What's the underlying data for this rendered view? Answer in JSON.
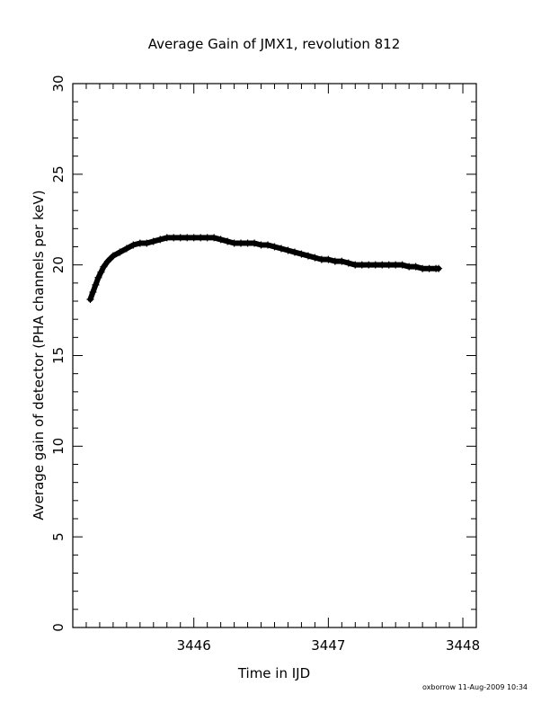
{
  "chart_data": {
    "type": "scatter",
    "title": "Average Gain of JMX1, revolution 812",
    "xlabel": "Time in IJD",
    "ylabel": "Average gain of detector (PHA channels per keV)",
    "xlim": [
      3445.1,
      3448.1
    ],
    "ylim": [
      0,
      30
    ],
    "x_ticks": [
      3446,
      3447,
      3448
    ],
    "y_ticks": [
      0,
      5,
      10,
      15,
      20,
      25,
      30
    ],
    "grid": false,
    "marker": "plus",
    "series": [
      {
        "x": [
          3445.23,
          3445.25,
          3445.27,
          3445.29,
          3445.31,
          3445.33,
          3445.36,
          3445.4,
          3445.45,
          3445.5,
          3445.55,
          3445.6,
          3445.65,
          3445.7,
          3445.75,
          3445.8,
          3445.85,
          3445.9,
          3445.95,
          3446.0,
          3446.05,
          3446.1,
          3446.15,
          3446.2,
          3446.25,
          3446.3,
          3446.35,
          3446.4,
          3446.45,
          3446.5,
          3446.55,
          3446.6,
          3446.65,
          3446.7,
          3446.75,
          3446.8,
          3446.85,
          3446.9,
          3446.95,
          3447.0,
          3447.05,
          3447.1,
          3447.15,
          3447.2,
          3447.25,
          3447.3,
          3447.35,
          3447.4,
          3447.45,
          3447.5,
          3447.55,
          3447.6,
          3447.65,
          3447.7,
          3447.75,
          3447.8,
          3447.82
        ],
        "y": [
          18.1,
          18.5,
          18.9,
          19.3,
          19.6,
          19.9,
          20.2,
          20.5,
          20.7,
          20.9,
          21.1,
          21.2,
          21.2,
          21.3,
          21.4,
          21.5,
          21.5,
          21.5,
          21.5,
          21.5,
          21.5,
          21.5,
          21.5,
          21.4,
          21.3,
          21.2,
          21.2,
          21.2,
          21.2,
          21.1,
          21.1,
          21.0,
          20.9,
          20.8,
          20.7,
          20.6,
          20.5,
          20.4,
          20.3,
          20.3,
          20.2,
          20.2,
          20.1,
          20.0,
          20.0,
          20.0,
          20.0,
          20.0,
          20.0,
          20.0,
          20.0,
          19.9,
          19.9,
          19.8,
          19.8,
          19.8,
          19.8
        ]
      }
    ]
  },
  "footer": {
    "text": "oxborrow 11-Aug-2009 10:34"
  }
}
